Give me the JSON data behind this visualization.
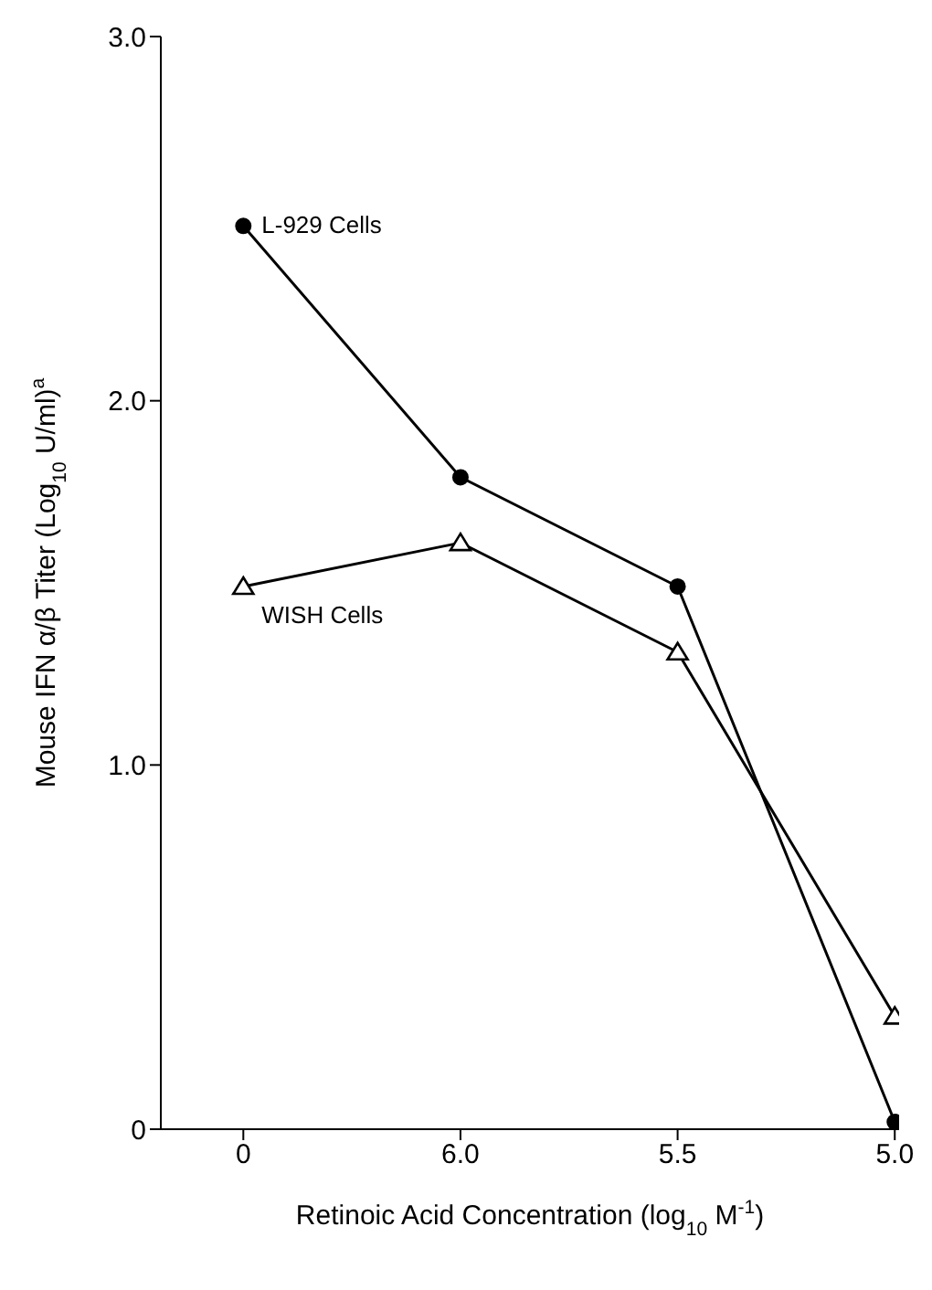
{
  "chart_data": {
    "type": "line",
    "xlabel": "Retinoic Acid Concentration (log$_{10}$ M$^{-1}$)",
    "ylabel": "Mouse IFN α/β Titer (Log$_{10}$ U/ml)$^{a}$",
    "categories": [
      "0",
      "6.0",
      "5.5",
      "5.0"
    ],
    "series": [
      {
        "name": "L-929 Cells",
        "color": "#000000",
        "marker": "circle",
        "values": [
          2.48,
          1.79,
          1.49,
          0.02
        ]
      },
      {
        "name": "WISH Cells",
        "color": "#000000",
        "marker": "triangle",
        "values": [
          1.49,
          1.61,
          1.31,
          0.31
        ]
      }
    ],
    "ylim": [
      0,
      3.0
    ],
    "yticks": [
      {
        "value": 0,
        "label": "0"
      },
      {
        "value": 1,
        "label": "1.0"
      },
      {
        "value": 2,
        "label": "2.0"
      },
      {
        "value": 3,
        "label": "3.0"
      }
    ],
    "grid": false,
    "legend": false,
    "line_style": "solid"
  }
}
